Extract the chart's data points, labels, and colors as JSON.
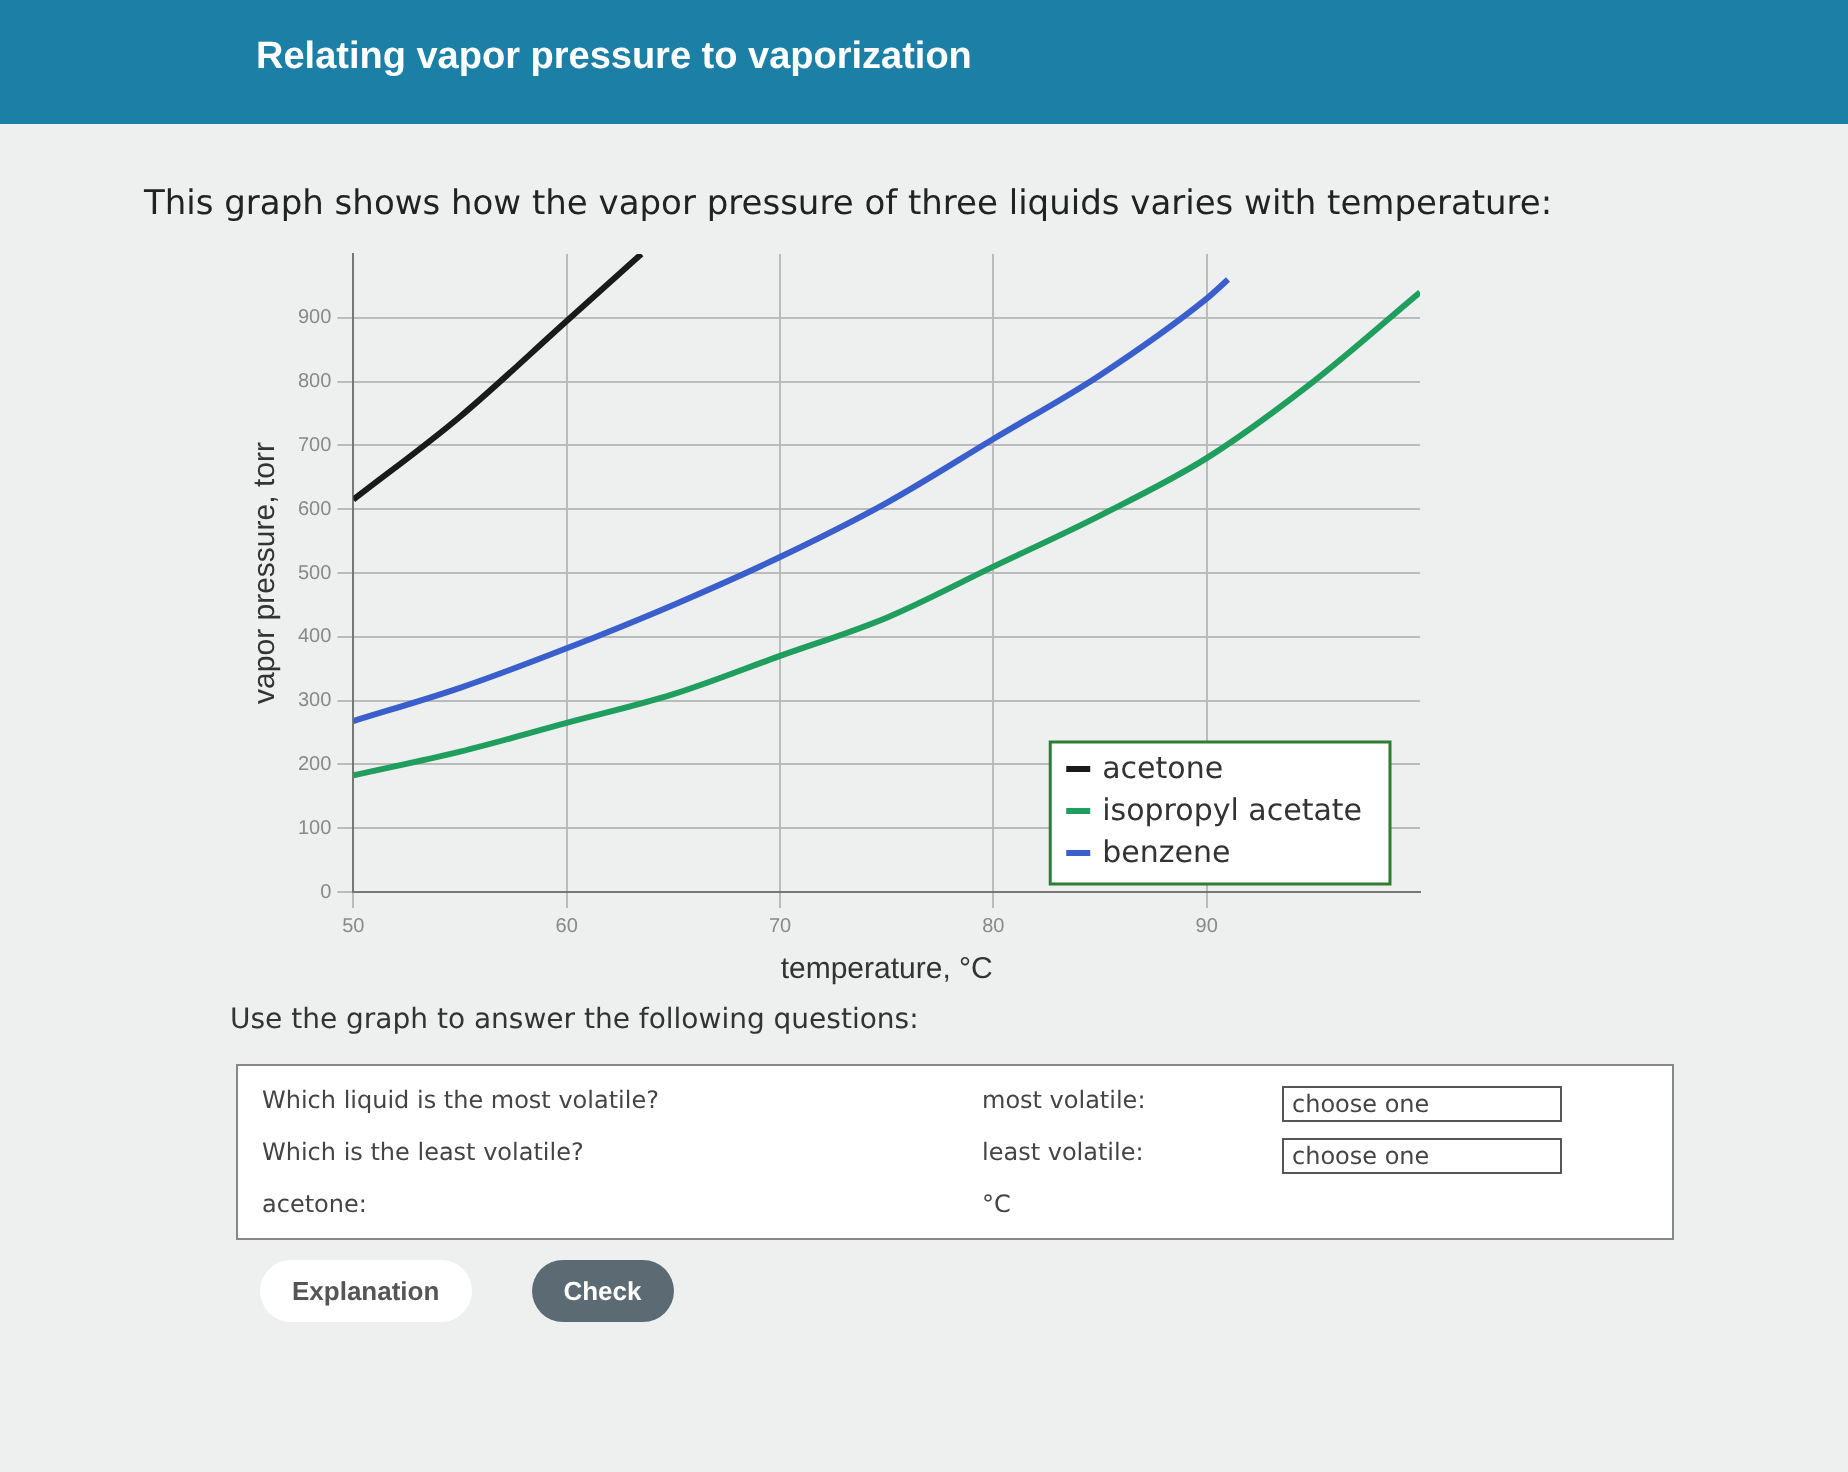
{
  "chart_data": {
    "type": "line",
    "title": "Relating vapor pressure to vaporization",
    "subtitle": "This graph shows how the vapor pressure of three liquids varies with temperature:",
    "xlabel": "temperature, °C",
    "ylabel": "vapor pressure, torr",
    "series": [
      {
        "name": "acetone",
        "color": "#1a1a1a",
        "x": [
          50,
          55,
          60,
          63.5
        ],
        "values": [
          615,
          745,
          895,
          1000
        ]
      },
      {
        "name": "isopropyl acetate",
        "color": "#1f9e5e",
        "x": [
          50,
          55,
          60,
          65,
          70,
          75,
          80,
          85,
          90,
          95,
          100
        ],
        "values": [
          183,
          220,
          265,
          310,
          370,
          430,
          510,
          590,
          680,
          800,
          940
        ]
      },
      {
        "name": "benzene",
        "color": "#3a5fcd",
        "x": [
          50,
          55,
          60,
          65,
          70,
          75,
          80,
          85,
          90,
          91
        ],
        "values": [
          268,
          320,
          382,
          450,
          525,
          610,
          710,
          810,
          930,
          960
        ]
      }
    ],
    "xlim": [
      50,
      100
    ],
    "ylim": [
      0,
      1000
    ],
    "xticks": [
      50,
      60,
      70,
      80,
      90
    ],
    "yticks": [
      0,
      100,
      200,
      300,
      400,
      500,
      600,
      700,
      800,
      900
    ],
    "grid": true,
    "legend": "bottom right",
    "marker": "none",
    "line_style": "solid",
    "annotations": [
      "Use the graph to answer the following questions:",
      "Which liquid is the most volatile?",
      "most volatile:",
      "choose one",
      "Which is the least volatile?",
      "least volatile:",
      "choose one",
      "acetone:",
      "°C",
      "Explanation",
      "Check"
    ]
  }
}
